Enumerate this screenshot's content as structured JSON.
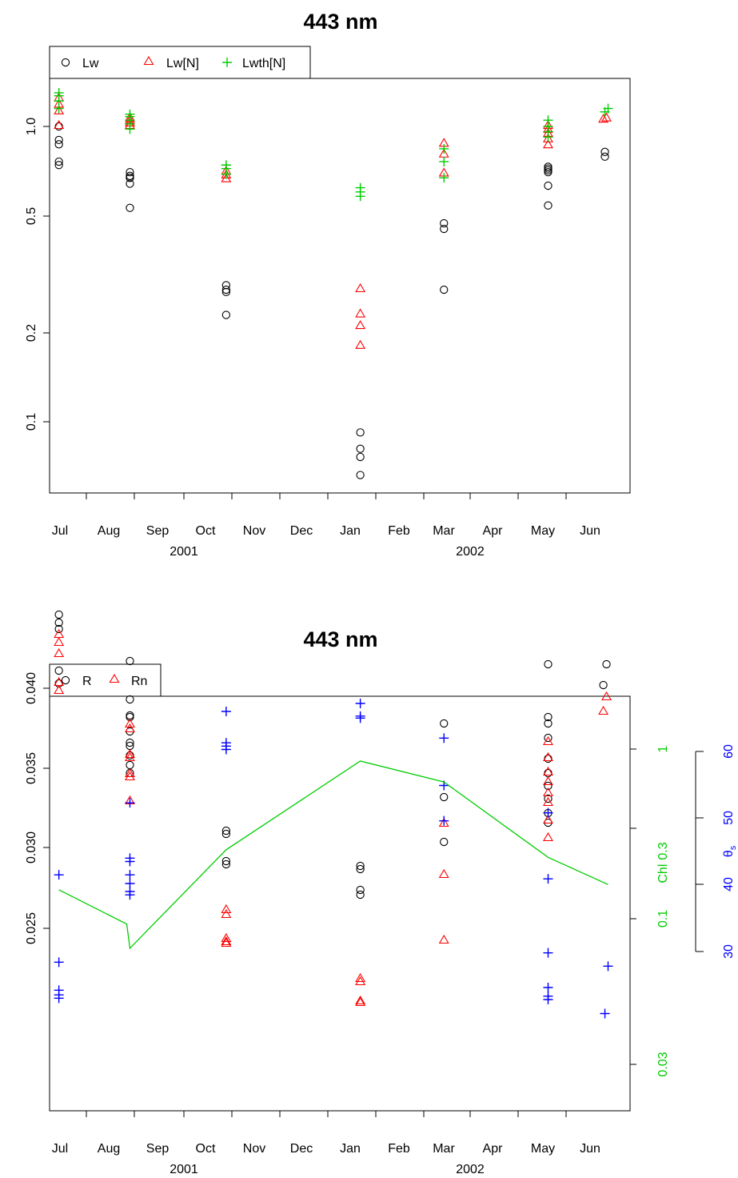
{
  "chart_data": [
    {
      "type": "scatter",
      "title": "443 nm",
      "y_scale": "log",
      "yticks": [
        0.1,
        0.2,
        0.5,
        1.0
      ],
      "ytick_labels": [
        "0.1",
        "0.2",
        "0.5",
        "1.0"
      ],
      "x_months": [
        "Jul",
        "Aug",
        "Sep",
        "Oct",
        "Nov",
        "Dec",
        "Jan",
        "Feb",
        "Mar",
        "Apr",
        "May",
        "Jun"
      ],
      "x_years": [
        "2001",
        "2002"
      ],
      "legend": [
        {
          "label": "Lw",
          "marker": "circle",
          "color": "#000000"
        },
        {
          "label": "Lw[N]",
          "marker": "triangle",
          "color": "#ff0000"
        },
        {
          "label": "Lwth[N]",
          "marker": "plus",
          "color": "#00cd00"
        }
      ],
      "series": [
        {
          "name": "Lw",
          "marker": "circle",
          "color": "#000000",
          "points": [
            [
              "2001-07-14",
              1.0
            ],
            [
              "2001-07-14",
              0.9
            ],
            [
              "2001-07-14",
              0.87
            ],
            [
              "2001-07-14",
              0.76
            ],
            [
              "2001-07-14",
              0.74
            ],
            [
              "2001-08-28",
              0.7
            ],
            [
              "2001-08-28",
              0.68
            ],
            [
              "2001-08-28",
              0.67
            ],
            [
              "2001-08-28",
              0.67
            ],
            [
              "2001-08-28",
              0.64
            ],
            [
              "2001-08-28",
              0.53
            ],
            [
              "2001-10-28",
              0.29
            ],
            [
              "2001-10-28",
              0.28
            ],
            [
              "2001-10-28",
              0.275
            ],
            [
              "2001-10-28",
              0.23
            ],
            [
              "2002-01-21",
              0.092
            ],
            [
              "2002-01-21",
              0.081
            ],
            [
              "2002-01-21",
              0.076
            ],
            [
              "2002-01-21",
              0.066
            ],
            [
              "2002-03-15",
              0.47
            ],
            [
              "2002-03-15",
              0.45
            ],
            [
              "2002-03-15",
              0.28
            ],
            [
              "2002-05-20",
              0.73
            ],
            [
              "2002-05-20",
              0.72
            ],
            [
              "2002-05-20",
              0.71
            ],
            [
              "2002-05-20",
              0.7
            ],
            [
              "2002-05-20",
              0.63
            ],
            [
              "2002-05-20",
              0.54
            ],
            [
              "2002-06-25",
              0.82
            ],
            [
              "2002-06-25",
              0.79
            ]
          ]
        },
        {
          "name": "Lw[N]",
          "marker": "triangle",
          "color": "#ff0000",
          "points": [
            [
              "2001-07-14",
              1.24
            ],
            [
              "2001-07-14",
              1.18
            ],
            [
              "2001-07-14",
              1.12
            ],
            [
              "2001-07-14",
              1.0
            ],
            [
              "2001-08-28",
              1.06
            ],
            [
              "2001-08-28",
              1.04
            ],
            [
              "2001-08-28",
              1.02
            ],
            [
              "2001-08-28",
              1.0
            ],
            [
              "2001-10-28",
              0.7
            ],
            [
              "2001-10-28",
              0.68
            ],
            [
              "2001-10-28",
              0.66
            ],
            [
              "2002-01-21",
              0.28
            ],
            [
              "2002-01-21",
              0.23
            ],
            [
              "2002-01-21",
              0.21
            ],
            [
              "2002-01-21",
              0.18
            ],
            [
              "2002-03-15",
              0.87
            ],
            [
              "2002-03-15",
              0.8
            ],
            [
              "2002-03-15",
              0.69
            ],
            [
              "2002-05-20",
              1.0
            ],
            [
              "2002-05-20",
              0.97
            ],
            [
              "2002-05-20",
              0.94
            ],
            [
              "2002-05-20",
              0.9
            ],
            [
              "2002-05-20",
              0.86
            ],
            [
              "2002-06-24",
              1.05
            ],
            [
              "2002-06-26",
              1.06
            ]
          ]
        },
        {
          "name": "Lwth[N]",
          "marker": "plus",
          "color": "#00cd00",
          "points": [
            [
              "2001-07-14",
              1.3
            ],
            [
              "2001-07-14",
              1.27
            ],
            [
              "2001-07-14",
              1.22
            ],
            [
              "2001-07-14",
              1.15
            ],
            [
              "2001-08-28",
              1.1
            ],
            [
              "2001-08-28",
              1.08
            ],
            [
              "2001-08-28",
              1.05
            ],
            [
              "2001-08-28",
              1.02
            ],
            [
              "2001-08-28",
              0.98
            ],
            [
              "2001-10-28",
              0.74
            ],
            [
              "2001-10-28",
              0.72
            ],
            [
              "2001-10-28",
              0.69
            ],
            [
              "2002-01-21",
              0.62
            ],
            [
              "2002-01-21",
              0.6
            ],
            [
              "2002-01-21",
              0.58
            ],
            [
              "2002-03-15",
              0.84
            ],
            [
              "2002-03-15",
              0.76
            ],
            [
              "2002-03-15",
              0.67
            ],
            [
              "2002-05-20",
              1.05
            ],
            [
              "2002-05-20",
              1.0
            ],
            [
              "2002-05-20",
              0.96
            ],
            [
              "2002-05-20",
              0.92
            ],
            [
              "2002-06-25",
              1.12
            ],
            [
              "2002-06-27",
              1.15
            ]
          ]
        }
      ]
    },
    {
      "type": "scatter",
      "title": "443 nm",
      "yticks": [
        0.025,
        0.03,
        0.035,
        0.04
      ],
      "ytick_labels": [
        "0.025",
        "0.030",
        "0.035",
        "0.040"
      ],
      "x_months": [
        "Jul",
        "Aug",
        "Sep",
        "Oct",
        "Nov",
        "Dec",
        "Jan",
        "Feb",
        "Mar",
        "Apr",
        "May",
        "Jun"
      ],
      "x_years": [
        "2001",
        "2002"
      ],
      "legend": [
        {
          "label": "R",
          "marker": "circle",
          "color": "#000000"
        },
        {
          "label": "Rn",
          "marker": "triangle",
          "color": "#ff0000"
        }
      ],
      "chl_axis": {
        "label": "Chl",
        "color": "#00cd00",
        "scale": "log",
        "ticks": [
          0.03,
          0.1,
          0.3,
          1
        ],
        "tick_labels": [
          "0.03",
          "0.1",
          "0.3",
          "1"
        ]
      },
      "theta_axis": {
        "label": "θ",
        "subscript": "s",
        "color": "#0000ff",
        "ticks": [
          30,
          40,
          50,
          60
        ],
        "tick_labels": [
          "30",
          "40",
          "50",
          "60"
        ]
      },
      "series": [
        {
          "name": "R",
          "marker": "circle",
          "color": "#000000",
          "points": [
            [
              "2001-07-14",
              0.0446
            ],
            [
              "2001-07-14",
              0.0441
            ],
            [
              "2001-07-14",
              0.0437
            ],
            [
              "2001-07-14",
              0.0411
            ],
            [
              "2001-07-14",
              0.0403
            ],
            [
              "2001-08-28",
              0.0417
            ],
            [
              "2001-08-28",
              0.0393
            ],
            [
              "2001-08-28",
              0.0383
            ],
            [
              "2001-08-28",
              0.0382
            ],
            [
              "2001-08-28",
              0.0373
            ],
            [
              "2001-08-28",
              0.0366
            ],
            [
              "2001-08-28",
              0.0364
            ],
            [
              "2001-08-28",
              0.0358
            ],
            [
              "2001-08-28",
              0.0352
            ],
            [
              "2001-08-28",
              0.0347
            ],
            [
              "2001-10-28",
              0.0311
            ],
            [
              "2001-10-28",
              0.0309
            ],
            [
              "2001-10-28",
              0.0292
            ],
            [
              "2001-10-28",
              0.029
            ],
            [
              "2002-01-21",
              0.0289
            ],
            [
              "2002-01-21",
              0.0287
            ],
            [
              "2002-01-21",
              0.0274
            ],
            [
              "2002-01-21",
              0.0271
            ],
            [
              "2002-03-15",
              0.0378
            ],
            [
              "2002-03-15",
              0.0332
            ],
            [
              "2002-03-15",
              0.0304
            ],
            [
              "2002-05-20",
              0.0415
            ],
            [
              "2002-05-20",
              0.0382
            ],
            [
              "2002-05-20",
              0.0378
            ],
            [
              "2002-05-20",
              0.0369
            ],
            [
              "2002-05-20",
              0.0356
            ],
            [
              "2002-05-20",
              0.0347
            ],
            [
              "2002-05-20",
              0.0339
            ],
            [
              "2002-05-20",
              0.0331
            ],
            [
              "2002-05-20",
              0.0322
            ],
            [
              "2002-05-20",
              0.0316
            ],
            [
              "2002-06-24",
              0.0402
            ],
            [
              "2002-06-26",
              0.0415
            ]
          ]
        },
        {
          "name": "Rn",
          "marker": "triangle",
          "color": "#ff0000",
          "points": [
            [
              "2001-07-14",
              0.0433
            ],
            [
              "2001-07-14",
              0.0428
            ],
            [
              "2001-07-14",
              0.0421
            ],
            [
              "2001-07-14",
              0.0403
            ],
            [
              "2001-07-14",
              0.0398
            ],
            [
              "2001-08-28",
              0.0377
            ],
            [
              "2001-08-28",
              0.0374
            ],
            [
              "2001-08-28",
              0.0358
            ],
            [
              "2001-08-28",
              0.0356
            ],
            [
              "2001-08-28",
              0.0346
            ],
            [
              "2001-08-28",
              0.0344
            ],
            [
              "2001-08-28",
              0.0329
            ],
            [
              "2001-10-28",
              0.0261
            ],
            [
              "2001-10-28",
              0.0258
            ],
            [
              "2001-10-28",
              0.0243
            ],
            [
              "2001-10-28",
              0.0241
            ],
            [
              "2001-10-28",
              0.024
            ],
            [
              "2002-01-21",
              0.0218
            ],
            [
              "2002-01-21",
              0.0216
            ],
            [
              "2002-01-21",
              0.0204
            ],
            [
              "2002-01-21",
              0.0203
            ],
            [
              "2002-03-15",
              0.0315
            ],
            [
              "2002-03-15",
              0.0283
            ],
            [
              "2002-03-15",
              0.0242
            ],
            [
              "2002-05-20",
              0.0366
            ],
            [
              "2002-05-20",
              0.0356
            ],
            [
              "2002-05-20",
              0.0347
            ],
            [
              "2002-05-20",
              0.0341
            ],
            [
              "2002-05-20",
              0.0334
            ],
            [
              "2002-05-20",
              0.0328
            ],
            [
              "2002-05-20",
              0.0317
            ],
            [
              "2002-05-20",
              0.0306
            ],
            [
              "2002-06-24",
              0.0385
            ],
            [
              "2002-06-26",
              0.0394
            ]
          ]
        },
        {
          "name": "θs",
          "marker": "plus",
          "color": "#0000ff",
          "axis": "theta",
          "points": [
            [
              "2001-07-14",
              41.5
            ],
            [
              "2001-07-14",
              28.4
            ],
            [
              "2001-07-14",
              24.2
            ],
            [
              "2001-07-14",
              23.5
            ],
            [
              "2001-07-14",
              23.0
            ],
            [
              "2001-08-28",
              52.3
            ],
            [
              "2001-08-28",
              44.0
            ],
            [
              "2001-08-28",
              43.5
            ],
            [
              "2001-08-28",
              41.5
            ],
            [
              "2001-08-28",
              40.2
            ],
            [
              "2001-08-28",
              39.0
            ],
            [
              "2001-08-28",
              38.5
            ],
            [
              "2001-10-28",
              66.0
            ],
            [
              "2001-10-28",
              61.3
            ],
            [
              "2001-10-28",
              60.8
            ],
            [
              "2001-10-28",
              60.3
            ],
            [
              "2002-01-21",
              67.2
            ],
            [
              "2002-01-21",
              65.3
            ],
            [
              "2002-01-21",
              65.0
            ],
            [
              "2002-03-15",
              62.0
            ],
            [
              "2002-03-15",
              54.9
            ],
            [
              "2002-03-15",
              49.6
            ],
            [
              "2002-05-20",
              50.8
            ],
            [
              "2002-05-20",
              40.9
            ],
            [
              "2002-05-20",
              29.8
            ],
            [
              "2002-05-20",
              24.6
            ],
            [
              "2002-05-20",
              23.3
            ],
            [
              "2002-05-20",
              22.8
            ],
            [
              "2002-06-25",
              20.7
            ],
            [
              "2002-06-27",
              27.8
            ]
          ]
        },
        {
          "name": "Chl",
          "type": "line",
          "color": "#00cd00",
          "axis": "chl",
          "points": [
            [
              "2001-07-14",
              0.148
            ],
            [
              "2001-08-26",
              0.093
            ],
            [
              "2001-08-28",
              0.067
            ],
            [
              "2001-10-28",
              0.255
            ],
            [
              "2002-01-21",
              0.85
            ],
            [
              "2002-03-15",
              0.64
            ],
            [
              "2002-05-20",
              0.23
            ],
            [
              "2002-06-27",
              0.159
            ]
          ]
        }
      ]
    }
  ]
}
